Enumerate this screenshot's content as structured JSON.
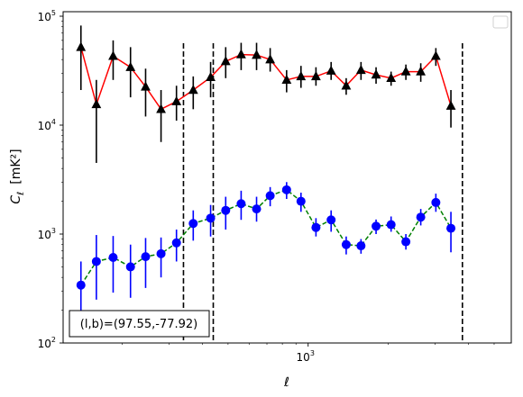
{
  "chart_data": {
    "type": "scatter",
    "title": "",
    "xlabel": "ℓ",
    "ylabel_main": "C",
    "ylabel_sub": "ℓ",
    "ylabel_unit": "[mK²]",
    "xscale": "log",
    "yscale": "log",
    "xlim": [
      120,
      5800
    ],
    "ylim": [
      100,
      110000
    ],
    "x_tick_labels": [
      {
        "value": 1000,
        "base": "10",
        "exp": "3"
      }
    ],
    "y_tick_labels": [
      {
        "value": 100,
        "base": "10",
        "exp": "2"
      },
      {
        "value": 1000,
        "base": "10",
        "exp": "3"
      },
      {
        "value": 10000,
        "base": "10",
        "exp": "4"
      },
      {
        "value": 100000,
        "base": "10",
        "exp": "5"
      }
    ],
    "grid": false,
    "legend": {
      "placement": "top-right",
      "entries": []
    },
    "annotation": "(l,b)=(97.55,-77.92)",
    "vlines": [
      340,
      440,
      3800
    ],
    "series": [
      {
        "marker": "triangle",
        "marker_color": "#000000",
        "line_color": "#ff0000",
        "line_style": "solid",
        "errorbar_color": "#000000",
        "points": [
          {
            "x": 140,
            "y": 52000,
            "lo": 21000,
            "hi": 82000
          },
          {
            "x": 160,
            "y": 15500,
            "lo": 4500,
            "hi": 26000
          },
          {
            "x": 185,
            "y": 43000,
            "lo": 26000,
            "hi": 60000
          },
          {
            "x": 215,
            "y": 34000,
            "lo": 18000,
            "hi": 52000
          },
          {
            "x": 245,
            "y": 22500,
            "lo": 12000,
            "hi": 33000
          },
          {
            "x": 280,
            "y": 14000,
            "lo": 7000,
            "hi": 21000
          },
          {
            "x": 320,
            "y": 16500,
            "lo": 11000,
            "hi": 23000
          },
          {
            "x": 370,
            "y": 21000,
            "lo": 14000,
            "hi": 28000
          },
          {
            "x": 430,
            "y": 27500,
            "lo": 18000,
            "hi": 38000
          },
          {
            "x": 490,
            "y": 38500,
            "lo": 27000,
            "hi": 52000
          },
          {
            "x": 560,
            "y": 44500,
            "lo": 32000,
            "hi": 57000
          },
          {
            "x": 640,
            "y": 44000,
            "lo": 32000,
            "hi": 57000
          },
          {
            "x": 720,
            "y": 40000,
            "lo": 31000,
            "hi": 51000
          },
          {
            "x": 830,
            "y": 26000,
            "lo": 20000,
            "hi": 32000
          },
          {
            "x": 940,
            "y": 28000,
            "lo": 22000,
            "hi": 35000
          },
          {
            "x": 1070,
            "y": 28000,
            "lo": 23000,
            "hi": 34000
          },
          {
            "x": 1220,
            "y": 31500,
            "lo": 26000,
            "hi": 38000
          },
          {
            "x": 1390,
            "y": 23000,
            "lo": 19000,
            "hi": 27000
          },
          {
            "x": 1580,
            "y": 32000,
            "lo": 26000,
            "hi": 38000
          },
          {
            "x": 1800,
            "y": 29000,
            "lo": 24000,
            "hi": 34000
          },
          {
            "x": 2050,
            "y": 27000,
            "lo": 23000,
            "hi": 31000
          },
          {
            "x": 2330,
            "y": 31000,
            "lo": 26000,
            "hi": 36000
          },
          {
            "x": 2650,
            "y": 31000,
            "lo": 25000,
            "hi": 37000
          },
          {
            "x": 3020,
            "y": 43000,
            "lo": 35000,
            "hi": 51000
          },
          {
            "x": 3440,
            "y": 15000,
            "lo": 9500,
            "hi": 21000
          }
        ]
      },
      {
        "marker": "circle",
        "marker_color": "#0000ff",
        "line_color": "#008000",
        "line_style": "dashed",
        "errorbar_color": "#0000ff",
        "points": [
          {
            "x": 140,
            "y": 340,
            "lo": 180,
            "hi": 560
          },
          {
            "x": 160,
            "y": 560,
            "lo": 250,
            "hi": 980
          },
          {
            "x": 185,
            "y": 610,
            "lo": 290,
            "hi": 960
          },
          {
            "x": 215,
            "y": 500,
            "lo": 260,
            "hi": 800
          },
          {
            "x": 245,
            "y": 620,
            "lo": 320,
            "hi": 920
          },
          {
            "x": 280,
            "y": 660,
            "lo": 400,
            "hi": 930
          },
          {
            "x": 320,
            "y": 830,
            "lo": 560,
            "hi": 1100
          },
          {
            "x": 370,
            "y": 1250,
            "lo": 870,
            "hi": 1650
          },
          {
            "x": 430,
            "y": 1400,
            "lo": 950,
            "hi": 1850
          },
          {
            "x": 490,
            "y": 1650,
            "lo": 1100,
            "hi": 2200
          },
          {
            "x": 560,
            "y": 1900,
            "lo": 1350,
            "hi": 2500
          },
          {
            "x": 640,
            "y": 1700,
            "lo": 1300,
            "hi": 2200
          },
          {
            "x": 720,
            "y": 2250,
            "lo": 1800,
            "hi": 2700
          },
          {
            "x": 830,
            "y": 2550,
            "lo": 2100,
            "hi": 3000
          },
          {
            "x": 940,
            "y": 2000,
            "lo": 1600,
            "hi": 2400
          },
          {
            "x": 1070,
            "y": 1150,
            "lo": 950,
            "hi": 1400
          },
          {
            "x": 1220,
            "y": 1350,
            "lo": 1050,
            "hi": 1650
          },
          {
            "x": 1390,
            "y": 800,
            "lo": 650,
            "hi": 950
          },
          {
            "x": 1580,
            "y": 780,
            "lo": 660,
            "hi": 900
          },
          {
            "x": 1800,
            "y": 1180,
            "lo": 1000,
            "hi": 1360
          },
          {
            "x": 2050,
            "y": 1220,
            "lo": 1050,
            "hi": 1450
          },
          {
            "x": 2330,
            "y": 850,
            "lo": 720,
            "hi": 1000
          },
          {
            "x": 2650,
            "y": 1430,
            "lo": 1200,
            "hi": 1700
          },
          {
            "x": 3020,
            "y": 1950,
            "lo": 1600,
            "hi": 2350
          },
          {
            "x": 3440,
            "y": 1130,
            "lo": 680,
            "hi": 1600
          }
        ]
      }
    ]
  }
}
